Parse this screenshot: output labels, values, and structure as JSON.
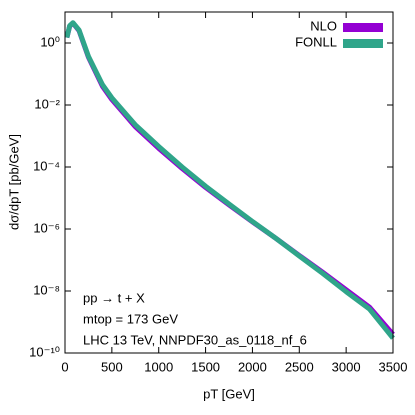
{
  "chart_data": {
    "type": "line",
    "x_label": "pT [GeV]",
    "y_label": "dσ/dpT [pb/GeV]",
    "annotations": [
      "pp → t + X",
      "mtop = 173 GeV",
      "LHC 13 TeV, NNPDF30_as_0118_nf_6"
    ],
    "x": [
      20,
      50,
      85,
      150,
      250,
      400,
      500,
      750,
      1000,
      1250,
      1500,
      1750,
      2000,
      2250,
      2500,
      2750,
      3000,
      3250,
      3500
    ],
    "series": [
      {
        "name": "NLO",
        "color": "#9400d3",
        "values": [
          1.5,
          3.5,
          4.4,
          2.5,
          0.35,
          0.04,
          0.015,
          0.002,
          0.0004,
          9e-05,
          2.2e-05,
          6e-06,
          1.7e-06,
          5e-07,
          1.4e-07,
          4e-08,
          1.1e-08,
          3e-09,
          4e-10
        ]
      },
      {
        "name": "FONLL",
        "color": "#2fa58a",
        "values": [
          1.5,
          3.6,
          4.5,
          2.6,
          0.37,
          0.045,
          0.017,
          0.0023,
          0.00046,
          0.0001,
          2.4e-05,
          6.4e-06,
          1.75e-06,
          5e-07,
          1.35e-07,
          3.7e-08,
          9.5e-09,
          2.6e-09,
          3e-10
        ]
      }
    ],
    "xlim": [
      0,
      3500
    ],
    "xticks": [
      0,
      500,
      1000,
      1500,
      2000,
      2500,
      3000,
      3500
    ],
    "ylim": [
      1e-10,
      10
    ],
    "log_y": true,
    "yticks": [
      {
        "value": 1e-10,
        "label": "10⁻¹⁰"
      },
      {
        "value": 1e-08,
        "label": "10⁻⁸"
      },
      {
        "value": 1e-06,
        "label": "10⁻⁶"
      },
      {
        "value": 0.0001,
        "label": "10⁻⁴"
      },
      {
        "value": 0.01,
        "label": "10⁻²"
      },
      {
        "value": 1,
        "label": "10⁰"
      }
    ],
    "legend": "top-right"
  }
}
